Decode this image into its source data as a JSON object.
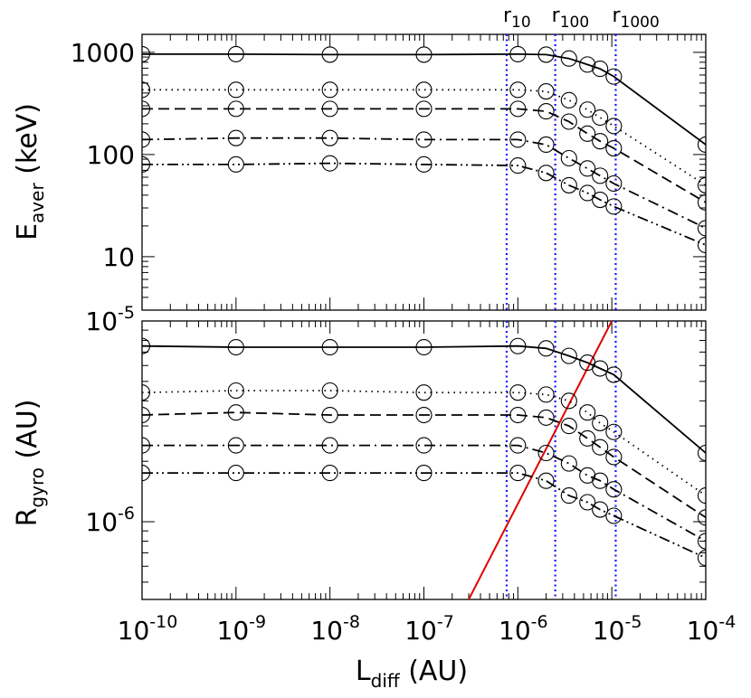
{
  "chart_data": [
    {
      "type": "line",
      "panel": "top",
      "ylabel": "E",
      "ylabel_sub": "aver",
      "ylabel_unit": "(keV)",
      "xscale": "log",
      "yscale": "log",
      "xlim": [
        1e-10,
        0.0001
      ],
      "ylim": [
        3,
        1500
      ],
      "yticks": [
        10,
        100,
        1000
      ],
      "ytick_labels": [
        "10",
        "100",
        "1000"
      ],
      "vlines": [
        {
          "label": "r",
          "sub": "10",
          "x": 7.6e-07
        },
        {
          "label": "r",
          "sub": "100",
          "x": 2.5e-06
        },
        {
          "label": "r",
          "sub": "1000",
          "x": 1.1e-05
        }
      ],
      "series": [
        {
          "style": "solid",
          "x": [
            1e-10,
            1e-09,
            1e-08,
            1e-07,
            1e-06,
            2e-06,
            3.5e-06,
            5.5e-06,
            7.5e-06,
            1.05e-05,
            0.0001
          ],
          "y": [
            960,
            960,
            950,
            950,
            960,
            950,
            870,
            760,
            690,
            580,
            125
          ]
        },
        {
          "style": "dotted",
          "x": [
            1e-10,
            1e-09,
            1e-08,
            1e-07,
            1e-06,
            2e-06,
            3.5e-06,
            5.5e-06,
            7.5e-06,
            1.05e-05,
            0.0001
          ],
          "y": [
            430,
            430,
            430,
            430,
            430,
            415,
            340,
            275,
            230,
            190,
            50
          ]
        },
        {
          "style": "dashed",
          "x": [
            1e-10,
            1e-09,
            1e-08,
            1e-07,
            1e-06,
            2e-06,
            3.5e-06,
            5.5e-06,
            7.5e-06,
            1.05e-05,
            0.0001
          ],
          "y": [
            280,
            280,
            280,
            280,
            280,
            265,
            210,
            160,
            135,
            115,
            34
          ]
        },
        {
          "style": "dash-dot",
          "x": [
            1e-10,
            1e-09,
            1e-08,
            1e-07,
            1e-06,
            2e-06,
            3.5e-06,
            5.5e-06,
            7.5e-06,
            1.05e-05,
            0.0001
          ],
          "y": [
            140,
            145,
            145,
            140,
            140,
            125,
            92,
            73,
            62,
            52,
            19
          ]
        },
        {
          "style": "dash-dot-dot",
          "x": [
            1e-10,
            1e-09,
            1e-08,
            1e-07,
            1e-06,
            2e-06,
            3.5e-06,
            5.5e-06,
            7.5e-06,
            1.05e-05,
            0.0001
          ],
          "y": [
            80,
            80,
            82,
            80,
            78,
            66,
            50,
            42,
            36,
            31,
            13
          ]
        }
      ]
    },
    {
      "type": "line",
      "panel": "bottom",
      "xlabel": "L",
      "xlabel_sub": "diff",
      "xlabel_unit": "(AU)",
      "ylabel": "R",
      "ylabel_sub": "gyro",
      "ylabel_unit": "(AU)",
      "xscale": "log",
      "yscale": "log",
      "xlim": [
        1e-10,
        0.0001
      ],
      "ylim": [
        4.1e-07,
        1e-05
      ],
      "xticks": [
        1e-10,
        1e-09,
        1e-08,
        1e-07,
        1e-06,
        1e-05,
        0.0001
      ],
      "xtick_base": "10",
      "xtick_exps": [
        "-10",
        "-9",
        "-8",
        "-7",
        "-6",
        "-5",
        "-4"
      ],
      "yticks": [
        1e-06,
        1e-05
      ],
      "ytick_base": "10",
      "ytick_exps": [
        "-6",
        "-5"
      ],
      "vlines": [
        {
          "x": 7.6e-07
        },
        {
          "x": 2.5e-06
        },
        {
          "x": 1.1e-05
        }
      ],
      "reference_line": {
        "color": "#e00000",
        "x": [
          3e-07,
          1e-05
        ],
        "y": [
          4.1e-07,
          1e-05
        ]
      },
      "series": [
        {
          "style": "solid",
          "x": [
            1e-10,
            1e-09,
            1e-08,
            1e-07,
            1e-06,
            2e-06,
            3.5e-06,
            5.5e-06,
            7.5e-06,
            1.05e-05,
            0.0001
          ],
          "y": [
            7.5e-06,
            7.4e-06,
            7.4e-06,
            7.4e-06,
            7.5e-06,
            7.3e-06,
            6.7e-06,
            6.2e-06,
            5.8e-06,
            5.4e-06,
            2.2e-06
          ]
        },
        {
          "style": "dotted",
          "x": [
            1e-10,
            1e-09,
            1e-08,
            1e-07,
            1e-06,
            2e-06,
            3.5e-06,
            5.5e-06,
            7.5e-06,
            1.05e-05,
            0.0001
          ],
          "y": [
            4.4e-06,
            4.5e-06,
            4.5e-06,
            4.4e-06,
            4.4e-06,
            4.3e-06,
            4e-06,
            3.5e-06,
            3.1e-06,
            2.8e-06,
            1.35e-06
          ]
        },
        {
          "style": "dashed",
          "x": [
            1e-10,
            1e-09,
            1e-08,
            1e-07,
            1e-06,
            2e-06,
            3.5e-06,
            5.5e-06,
            7.5e-06,
            1.05e-05,
            0.0001
          ],
          "y": [
            3.4e-06,
            3.5e-06,
            3.4e-06,
            3.4e-06,
            3.4e-06,
            3.3e-06,
            3e-06,
            2.6e-06,
            2.35e-06,
            2.1e-06,
            1.05e-06
          ]
        },
        {
          "style": "dash-dot",
          "x": [
            1e-10,
            1e-09,
            1e-08,
            1e-07,
            1e-06,
            2e-06,
            3.5e-06,
            5.5e-06,
            7.5e-06,
            1.05e-05,
            0.0001
          ],
          "y": [
            2.4e-06,
            2.4e-06,
            2.4e-06,
            2.4e-06,
            2.4e-06,
            2.2e-06,
            1.95e-06,
            1.7e-06,
            1.6e-06,
            1.45e-06,
            8e-07
          ]
        },
        {
          "style": "dash-dot-dot",
          "x": [
            1e-10,
            1e-09,
            1e-08,
            1e-07,
            1e-06,
            2e-06,
            3.5e-06,
            5.5e-06,
            7.5e-06,
            1.05e-05,
            0.0001
          ],
          "y": [
            1.75e-06,
            1.75e-06,
            1.75e-06,
            1.75e-06,
            1.75e-06,
            1.6e-06,
            1.35e-06,
            1.25e-06,
            1.15e-06,
            1.07e-06,
            6.6e-07
          ]
        }
      ]
    }
  ],
  "colors": {
    "vline": "#1515ff",
    "reference": "#e00000",
    "ink": "#000000"
  }
}
